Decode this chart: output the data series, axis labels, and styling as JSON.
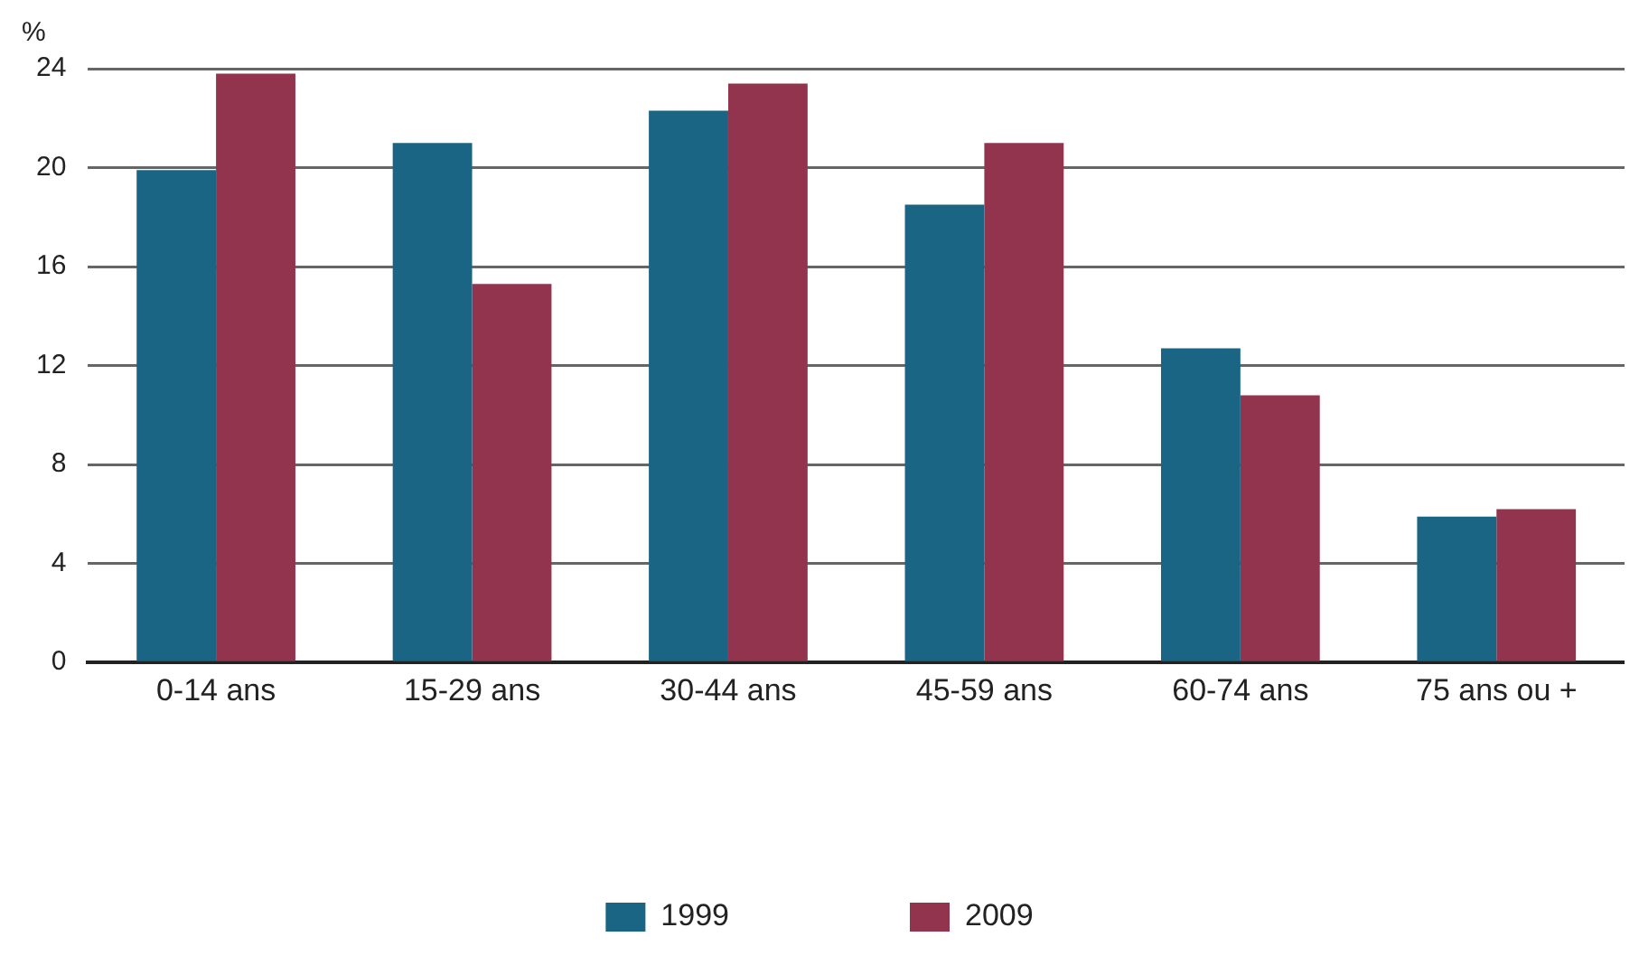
{
  "chart_data": {
    "type": "bar",
    "ylabel": "%",
    "categories": [
      "0-14 ans",
      "15-29 ans",
      "30-44 ans",
      "45-59 ans",
      "60-74 ans",
      "75 ans ou +"
    ],
    "series": [
      {
        "name": "1999",
        "color": "#1a6584",
        "values": [
          19.9,
          21.0,
          22.3,
          18.5,
          12.7,
          5.9
        ]
      },
      {
        "name": "2009",
        "color": "#93344f",
        "values": [
          23.8,
          15.3,
          23.4,
          21.0,
          10.8,
          6.2
        ]
      }
    ],
    "ylim": [
      0,
      24
    ],
    "yticks": [
      0,
      4,
      8,
      12,
      16,
      20,
      24
    ],
    "grid": "y",
    "legend": "bottom"
  }
}
